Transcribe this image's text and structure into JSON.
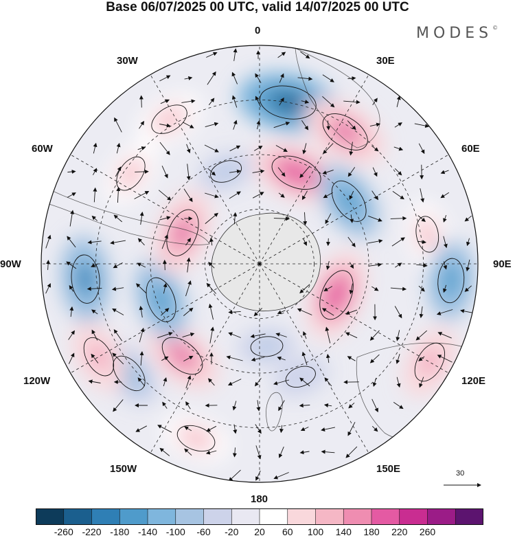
{
  "title": "Base 06/07/2025 00 UTC, valid 14/07/2025 00 UTC",
  "brand": "MODES",
  "brand_mark": "©",
  "longitude_labels": {
    "lon_0": "0",
    "lon_30e": "30E",
    "lon_60e": "60E",
    "lon_90e": "90E",
    "lon_120e": "120E",
    "lon_150e": "150E",
    "lon_180": "180",
    "lon_150w": "150W",
    "lon_120w": "120W",
    "lon_90w": "90W",
    "lon_60w": "60W",
    "lon_30w": "30W"
  },
  "reference_vector": {
    "label": "30"
  },
  "colorbar": {
    "colors": [
      "#0d3b5a",
      "#1b5f8e",
      "#2f7fb5",
      "#4f9bcb",
      "#7fb6dd",
      "#a7c4e2",
      "#cdd3ea",
      "#e9e8f2",
      "#ffffff",
      "#f9d8dc",
      "#f5b7c5",
      "#ef8db1",
      "#e45aa3",
      "#c92d91",
      "#9b1c87",
      "#5c146f"
    ],
    "ticks": [
      "-260",
      "-220",
      "-180",
      "-140",
      "-100",
      "-60",
      "-20",
      "20",
      "60",
      "100",
      "140",
      "180",
      "220",
      "260"
    ]
  },
  "colors": {
    "land_outline": "#333333",
    "antarctica_fill": "#e8e8e8",
    "grid": "#222222"
  },
  "anomaly_centers": [
    {
      "lon_deg": 10,
      "colat": 0.75,
      "value": -250
    },
    {
      "lon_deg": 22,
      "colat": 0.45,
      "value": 210
    },
    {
      "lon_deg": 33,
      "colat": 0.72,
      "value": 200
    },
    {
      "lon_deg": 55,
      "colat": 0.5,
      "value": -170
    },
    {
      "lon_deg": 80,
      "colat": 0.78,
      "value": 100
    },
    {
      "lon_deg": 95,
      "colat": 0.88,
      "value": -160
    },
    {
      "lon_deg": 112,
      "colat": 0.38,
      "value": 210
    },
    {
      "lon_deg": 120,
      "colat": 0.9,
      "value": 140
    },
    {
      "lon_deg": 160,
      "colat": 0.55,
      "value": -60
    },
    {
      "lon_deg": 175,
      "colat": 0.38,
      "value": -70
    },
    {
      "lon_deg": -160,
      "colat": 0.85,
      "value": 120
    },
    {
      "lon_deg": -140,
      "colat": 0.55,
      "value": 180
    },
    {
      "lon_deg": -130,
      "colat": 0.78,
      "value": -130
    },
    {
      "lon_deg": -120,
      "colat": 0.85,
      "value": 140
    },
    {
      "lon_deg": -110,
      "colat": 0.48,
      "value": -170
    },
    {
      "lon_deg": -95,
      "colat": 0.8,
      "value": -190
    },
    {
      "lon_deg": -68,
      "colat": 0.38,
      "value": 190
    },
    {
      "lon_deg": -55,
      "colat": 0.72,
      "value": 110
    },
    {
      "lon_deg": -32,
      "colat": 0.78,
      "value": 120
    },
    {
      "lon_deg": -20,
      "colat": 0.45,
      "value": -70
    }
  ]
}
